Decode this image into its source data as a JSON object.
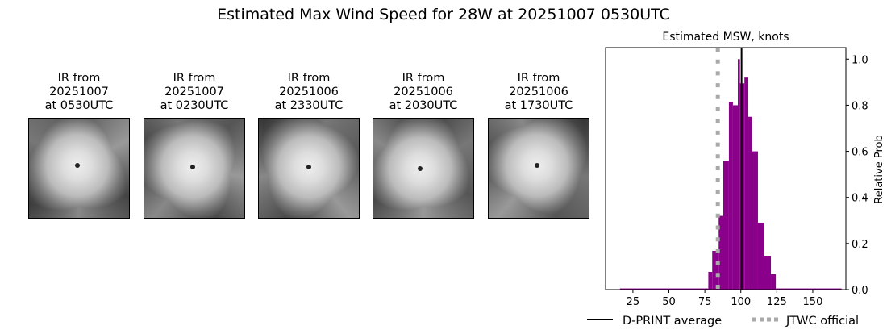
{
  "title": "Estimated Max Wind Speed for 28W at 20251007 0530UTC",
  "panels": [
    {
      "line1": "IR from",
      "line2": "20251007",
      "line3": "at 0530UTC"
    },
    {
      "line1": "IR from",
      "line2": "20251007",
      "line3": "at 0230UTC"
    },
    {
      "line1": "IR from",
      "line2": "20251006",
      "line3": "at 2330UTC"
    },
    {
      "line1": "IR from",
      "line2": "20251006",
      "line3": "at 2030UTC"
    },
    {
      "line1": "IR from",
      "line2": "20251006",
      "line3": "at 1730UTC"
    }
  ],
  "chart_data": {
    "type": "bar",
    "title": "Estimated MSW, knots",
    "xlabel": "",
    "ylabel": "Relative Prob",
    "xlim": [
      6,
      173
    ],
    "ylim": [
      0,
      1.05
    ],
    "xticks": [
      25,
      50,
      75,
      100,
      125,
      150
    ],
    "yticks": [
      "0.0",
      "0.2",
      "0.4",
      "0.6",
      "0.8",
      "1.0"
    ],
    "bar_color": "#8b008b",
    "bins": [
      {
        "x0": 16,
        "x1": 77.4,
        "value": 0.005
      },
      {
        "x0": 77.4,
        "x1": 80.1,
        "value": 0.077
      },
      {
        "x0": 80.1,
        "x1": 84.6,
        "value": 0.168
      },
      {
        "x0": 84.6,
        "x1": 87.8,
        "value": 0.32
      },
      {
        "x0": 87.8,
        "x1": 91.7,
        "value": 0.56
      },
      {
        "x0": 91.7,
        "x1": 94.5,
        "value": 0.815
      },
      {
        "x0": 94.5,
        "x1": 97.9,
        "value": 0.8
      },
      {
        "x0": 97.9,
        "x1": 99.4,
        "value": 1.0
      },
      {
        "x0": 99.4,
        "x1": 102.5,
        "value": 0.895
      },
      {
        "x0": 102.5,
        "x1": 105.2,
        "value": 0.92
      },
      {
        "x0": 105.2,
        "x1": 107.8,
        "value": 0.75
      },
      {
        "x0": 107.8,
        "x1": 111.9,
        "value": 0.6
      },
      {
        "x0": 111.9,
        "x1": 116.4,
        "value": 0.29
      },
      {
        "x0": 116.4,
        "x1": 120.9,
        "value": 0.147
      },
      {
        "x0": 120.9,
        "x1": 124.3,
        "value": 0.067
      },
      {
        "x0": 124.3,
        "x1": 170,
        "value": 0.005
      }
    ],
    "dprint_average": 100.5,
    "jtwc_official": 84,
    "legend": [
      {
        "label": "D-PRINT average",
        "color": "#000000",
        "style": "solid"
      },
      {
        "label": "JTWC official",
        "color": "#a9a9a9",
        "style": "dotted"
      }
    ],
    "legend_placement": "bottom"
  }
}
